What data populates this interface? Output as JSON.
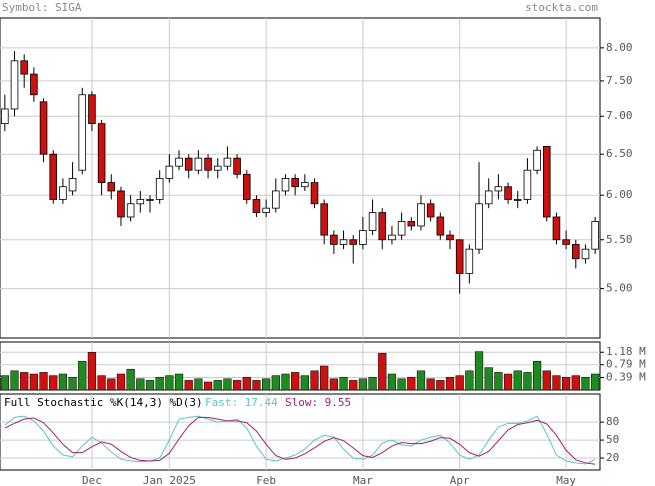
{
  "chart_data": [
    {
      "type": "candlestick",
      "title": "Symbol: SIGA",
      "source": "stockta.com",
      "log_scale": true,
      "grid": true,
      "up_color": "#ffffff",
      "down_color": "#cc1111",
      "categories": [
        null,
        null,
        null,
        null,
        null,
        null,
        null,
        null,
        null,
        "Dec",
        null,
        null,
        null,
        null,
        null,
        null,
        null,
        "Jan 2025",
        null,
        null,
        null,
        null,
        null,
        null,
        null,
        null,
        null,
        "Feb",
        null,
        null,
        null,
        null,
        null,
        null,
        null,
        null,
        null,
        "Mar",
        null,
        null,
        null,
        null,
        null,
        null,
        null,
        null,
        null,
        "Apr",
        null,
        null,
        null,
        null,
        null,
        null,
        null,
        null,
        null,
        null,
        "May",
        null,
        null,
        null
      ],
      "ohlc": [
        [
          6.9,
          7.3,
          6.8,
          7.1
        ],
        [
          7.1,
          7.95,
          7.0,
          7.8
        ],
        [
          7.8,
          7.9,
          7.4,
          7.6
        ],
        [
          7.6,
          7.7,
          7.2,
          7.3
        ],
        [
          7.2,
          7.25,
          6.4,
          6.5
        ],
        [
          6.5,
          6.55,
          5.9,
          5.95
        ],
        [
          5.95,
          6.2,
          5.9,
          6.1
        ],
        [
          6.05,
          6.4,
          6.0,
          6.2
        ],
        [
          6.3,
          7.4,
          6.25,
          7.3
        ],
        [
          7.3,
          7.35,
          6.8,
          6.9
        ],
        [
          6.9,
          6.95,
          6.0,
          6.15
        ],
        [
          6.15,
          6.25,
          5.95,
          6.05
        ],
        [
          6.05,
          6.1,
          5.65,
          5.75
        ],
        [
          5.75,
          6.0,
          5.7,
          5.9
        ],
        [
          5.9,
          6.05,
          5.8,
          5.95
        ],
        [
          5.95,
          6.0,
          5.8,
          5.95
        ],
        [
          5.95,
          6.3,
          5.9,
          6.2
        ],
        [
          6.2,
          6.5,
          6.15,
          6.35
        ],
        [
          6.35,
          6.55,
          6.3,
          6.45
        ],
        [
          6.45,
          6.5,
          6.2,
          6.3
        ],
        [
          6.3,
          6.55,
          6.25,
          6.45
        ],
        [
          6.45,
          6.5,
          6.2,
          6.3
        ],
        [
          6.3,
          6.45,
          6.2,
          6.35
        ],
        [
          6.35,
          6.6,
          6.3,
          6.45
        ],
        [
          6.45,
          6.5,
          6.2,
          6.25
        ],
        [
          6.25,
          6.3,
          5.9,
          5.95
        ],
        [
          5.95,
          6.0,
          5.75,
          5.8
        ],
        [
          5.8,
          5.95,
          5.75,
          5.85
        ],
        [
          5.85,
          6.2,
          5.8,
          6.05
        ],
        [
          6.05,
          6.25,
          6.0,
          6.2
        ],
        [
          6.2,
          6.25,
          6.0,
          6.1
        ],
        [
          6.1,
          6.25,
          6.05,
          6.15
        ],
        [
          6.15,
          6.2,
          5.85,
          5.9
        ],
        [
          5.9,
          5.95,
          5.45,
          5.55
        ],
        [
          5.55,
          5.6,
          5.35,
          5.45
        ],
        [
          5.45,
          5.6,
          5.4,
          5.5
        ],
        [
          5.5,
          5.55,
          5.25,
          5.45
        ],
        [
          5.45,
          5.75,
          5.4,
          5.6
        ],
        [
          5.6,
          5.95,
          5.55,
          5.8
        ],
        [
          5.8,
          5.85,
          5.4,
          5.5
        ],
        [
          5.5,
          5.65,
          5.45,
          5.55
        ],
        [
          5.55,
          5.8,
          5.5,
          5.7
        ],
        [
          5.7,
          5.75,
          5.6,
          5.65
        ],
        [
          5.65,
          6.0,
          5.6,
          5.9
        ],
        [
          5.9,
          5.95,
          5.7,
          5.75
        ],
        [
          5.75,
          5.8,
          5.5,
          5.55
        ],
        [
          5.55,
          5.6,
          5.4,
          5.5
        ],
        [
          5.5,
          5.5,
          4.95,
          5.15
        ],
        [
          5.15,
          5.45,
          5.05,
          5.4
        ],
        [
          5.4,
          6.4,
          5.35,
          5.9
        ],
        [
          5.9,
          6.2,
          5.85,
          6.05
        ],
        [
          6.05,
          6.25,
          5.95,
          6.1
        ],
        [
          6.1,
          6.15,
          5.9,
          5.95
        ],
        [
          5.95,
          6.05,
          5.85,
          5.95
        ],
        [
          5.95,
          6.45,
          5.9,
          6.3
        ],
        [
          6.3,
          6.6,
          6.25,
          6.55
        ],
        [
          6.6,
          6.6,
          5.7,
          5.75
        ],
        [
          5.75,
          5.8,
          5.45,
          5.5
        ],
        [
          5.5,
          5.6,
          5.4,
          5.45
        ],
        [
          5.45,
          5.5,
          5.2,
          5.3
        ],
        [
          5.3,
          5.45,
          5.25,
          5.4
        ],
        [
          5.4,
          5.75,
          5.35,
          5.7
        ]
      ],
      "ylim": [
        4.54,
        8.48
      ],
      "yticks": [
        {
          "value": 5,
          "label": "5.00"
        },
        {
          "value": 5.5,
          "label": "5.50"
        },
        {
          "value": 6,
          "label": "6.00"
        },
        {
          "value": 6.5,
          "label": "6.50"
        },
        {
          "value": 7,
          "label": "7.00"
        },
        {
          "value": 7.5,
          "label": "7.50"
        },
        {
          "value": 8,
          "label": "8.00"
        }
      ]
    },
    {
      "type": "bar",
      "up_color": "#208a20",
      "down_color": "#cc1111",
      "values": [
        0.45,
        0.6,
        0.55,
        0.5,
        0.55,
        0.45,
        0.5,
        0.4,
        0.9,
        1.18,
        0.45,
        0.35,
        0.5,
        0.65,
        0.35,
        0.3,
        0.4,
        0.45,
        0.5,
        0.3,
        0.35,
        0.25,
        0.3,
        0.35,
        0.3,
        0.4,
        0.3,
        0.35,
        0.45,
        0.5,
        0.55,
        0.45,
        0.6,
        0.75,
        0.35,
        0.4,
        0.3,
        0.35,
        0.4,
        1.15,
        0.5,
        0.35,
        0.4,
        0.6,
        0.35,
        0.3,
        0.4,
        0.45,
        0.6,
        1.2,
        0.7,
        0.55,
        0.5,
        0.6,
        0.55,
        0.9,
        0.6,
        0.45,
        0.4,
        0.45,
        0.4,
        0.5
      ],
      "ylim": [
        0,
        1.5
      ],
      "yticks": [
        {
          "value": 0.39,
          "label": "0.39 M"
        },
        {
          "value": 0.79,
          "label": "0.79 M"
        },
        {
          "value": 1.18,
          "label": "1.18 M"
        }
      ]
    },
    {
      "type": "line",
      "title": "Full Stochastic %K(14,3) %D(3)",
      "grid": true,
      "series": [
        {
          "name": "Fast:",
          "color": "#5cc4c4",
          "values": [
            75,
            88,
            90,
            82,
            65,
            40,
            25,
            22,
            40,
            55,
            45,
            30,
            18,
            15,
            14,
            15,
            20,
            50,
            85,
            88,
            90,
            85,
            80,
            82,
            85,
            70,
            40,
            18,
            15,
            20,
            25,
            35,
            50,
            58,
            55,
            35,
            20,
            18,
            25,
            45,
            50,
            42,
            40,
            50,
            55,
            58,
            45,
            25,
            18,
            25,
            50,
            72,
            78,
            78,
            82,
            90,
            60,
            25,
            15,
            12,
            10,
            17.44
          ]
        },
        {
          "name": "Slow:",
          "color": "#a0206a",
          "values": [
            70,
            78,
            85,
            87,
            79,
            62,
            43,
            29,
            29,
            39,
            47,
            43,
            31,
            21,
            16,
            15,
            16,
            28,
            52,
            74,
            88,
            88,
            85,
            82,
            82,
            79,
            65,
            43,
            24,
            18,
            20,
            27,
            37,
            48,
            54,
            49,
            37,
            24,
            21,
            29,
            40,
            46,
            44,
            44,
            48,
            54,
            53,
            43,
            29,
            23,
            31,
            49,
            67,
            76,
            79,
            83,
            77,
            58,
            33,
            17,
            12,
            9.55
          ]
        }
      ],
      "ylim": [
        0,
        127
      ],
      "yticks": [
        20,
        50,
        80
      ]
    }
  ]
}
